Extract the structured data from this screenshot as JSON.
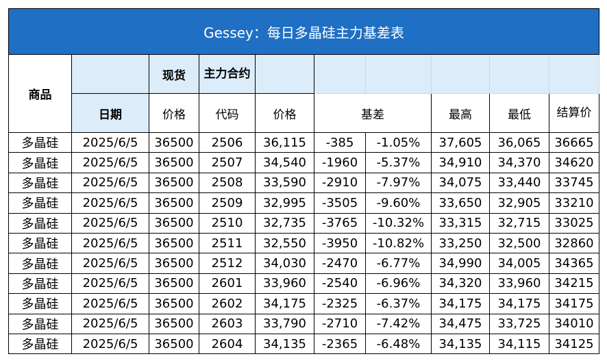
{
  "title": "Gessey：每日多晶硅主力基差表",
  "header": {
    "product": "商品",
    "spot": "现货",
    "main_contract": "主力合约",
    "date": "日期",
    "spot_price": "价格",
    "code": "代码",
    "price": "价格",
    "basis": "基差",
    "high": "最高",
    "low": "最低",
    "settle": "结算价"
  },
  "rows": [
    {
      "product": "多晶硅",
      "date": "2025/6/5",
      "spot": "36500",
      "code": "2506",
      "price": "36,115",
      "basis": "-385",
      "basis_pct": "-1.05%",
      "high": "37,605",
      "low": "36,065",
      "settle": "36665"
    },
    {
      "product": "多晶硅",
      "date": "2025/6/5",
      "spot": "36500",
      "code": "2507",
      "price": "34,540",
      "basis": "-1960",
      "basis_pct": "-5.37%",
      "high": "34,910",
      "low": "34,370",
      "settle": "34620"
    },
    {
      "product": "多晶硅",
      "date": "2025/6/5",
      "spot": "36500",
      "code": "2508",
      "price": "33,590",
      "basis": "-2910",
      "basis_pct": "-7.97%",
      "high": "34,075",
      "low": "33,440",
      "settle": "33745"
    },
    {
      "product": "多晶硅",
      "date": "2025/6/5",
      "spot": "36500",
      "code": "2509",
      "price": "32,995",
      "basis": "-3505",
      "basis_pct": "-9.60%",
      "high": "33,650",
      "low": "32,905",
      "settle": "33210"
    },
    {
      "product": "多晶硅",
      "date": "2025/6/5",
      "spot": "36500",
      "code": "2510",
      "price": "32,735",
      "basis": "-3765",
      "basis_pct": "-10.32%",
      "high": "33,315",
      "low": "32,715",
      "settle": "33025"
    },
    {
      "product": "多晶硅",
      "date": "2025/6/5",
      "spot": "36500",
      "code": "2511",
      "price": "32,550",
      "basis": "-3950",
      "basis_pct": "-10.82%",
      "high": "33,250",
      "low": "32,500",
      "settle": "32860"
    },
    {
      "product": "多晶硅",
      "date": "2025/6/5",
      "spot": "36500",
      "code": "2512",
      "price": "34,030",
      "basis": "-2470",
      "basis_pct": "-6.77%",
      "high": "34,990",
      "low": "34,005",
      "settle": "34365"
    },
    {
      "product": "多晶硅",
      "date": "2025/6/5",
      "spot": "36500",
      "code": "2601",
      "price": "33,960",
      "basis": "-2540",
      "basis_pct": "-6.96%",
      "high": "34,320",
      "low": "33,960",
      "settle": "34215"
    },
    {
      "product": "多晶硅",
      "date": "2025/6/5",
      "spot": "36500",
      "code": "2602",
      "price": "34,175",
      "basis": "-2325",
      "basis_pct": "-6.37%",
      "high": "34,175",
      "low": "34,175",
      "settle": "34175"
    },
    {
      "product": "多晶硅",
      "date": "2025/6/5",
      "spot": "36500",
      "code": "2603",
      "price": "33,790",
      "basis": "-2710",
      "basis_pct": "-7.42%",
      "high": "34,475",
      "low": "33,725",
      "settle": "34010"
    },
    {
      "product": "多晶硅",
      "date": "2025/6/5",
      "spot": "36500",
      "code": "2604",
      "price": "34,135",
      "basis": "-2365",
      "basis_pct": "-6.48%",
      "high": "34,135",
      "low": "34,115",
      "settle": "34125"
    }
  ],
  "colors": {
    "title_bg": "#1f6fc4",
    "header_bg": "#dcecf8",
    "product_text": "#1f3fbf",
    "basis_text": "#22a84a"
  }
}
